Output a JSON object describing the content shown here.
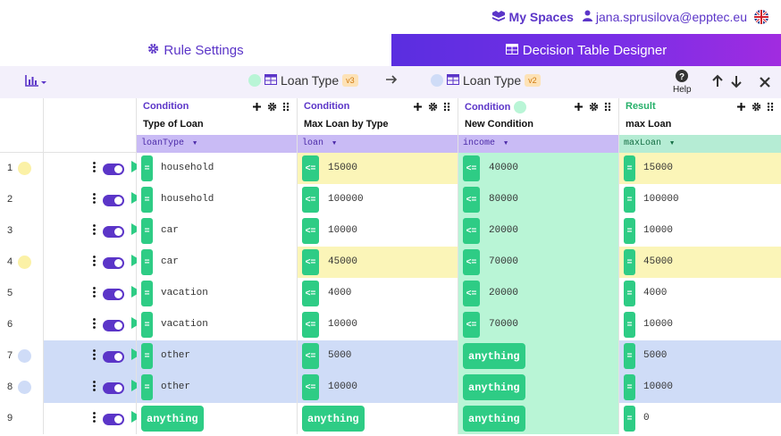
{
  "header": {
    "my_spaces": "My Spaces",
    "user_email": "jana.sprusilova@epptec.eu"
  },
  "tabs": [
    {
      "label": "Rule Settings"
    },
    {
      "label": "Decision Table Designer"
    }
  ],
  "toolbar": {
    "from_version": {
      "name": "Loan Type",
      "badge": "v3",
      "dot_color": "#b9f5d6"
    },
    "to_version": {
      "name": "Loan Type",
      "badge": "v2",
      "dot_color": "#cfdcf7"
    },
    "help_label": "Help"
  },
  "columns": [
    {
      "type": "Condition",
      "name": "Type of Loan",
      "variable": "loanType"
    },
    {
      "type": "Condition",
      "name": "Max Loan by Type",
      "variable": "loan"
    },
    {
      "type": "Condition",
      "name": "New Condition",
      "variable": "income"
    },
    {
      "type": "Result",
      "name": "max Loan",
      "variable": "maxLoan"
    }
  ],
  "colors": {
    "accent": "#5b35c8",
    "green": "#2ecc85",
    "yellow_highlight": "#fbf5b8",
    "blue_highlight": "#cfdcf7",
    "new_column": "#b9f5d6"
  },
  "rows": [
    {
      "num": "1",
      "dot": "yellow",
      "type": "household",
      "loan_op": "<=",
      "loan": "15000",
      "income_op": "<=",
      "income": "40000",
      "max": "15000"
    },
    {
      "num": "2",
      "dot": "",
      "type": "household",
      "loan_op": "<=",
      "loan": "100000",
      "income_op": "<=",
      "income": "80000",
      "max": "100000"
    },
    {
      "num": "3",
      "dot": "",
      "type": "car",
      "loan_op": "<=",
      "loan": "10000",
      "income_op": "<=",
      "income": "20000",
      "max": "10000"
    },
    {
      "num": "4",
      "dot": "yellow",
      "type": "car",
      "loan_op": "<=",
      "loan": "45000",
      "income_op": "<=",
      "income": "70000",
      "max": "45000"
    },
    {
      "num": "5",
      "dot": "",
      "type": "vacation",
      "loan_op": "<=",
      "loan": "4000",
      "income_op": "<=",
      "income": "20000",
      "max": "4000"
    },
    {
      "num": "6",
      "dot": "",
      "type": "vacation",
      "loan_op": "<=",
      "loan": "10000",
      "income_op": "<=",
      "income": "70000",
      "max": "10000"
    },
    {
      "num": "7",
      "dot": "blue",
      "type": "other",
      "loan_op": "<=",
      "loan": "5000",
      "income_op": "",
      "income": "anything",
      "max": "5000"
    },
    {
      "num": "8",
      "dot": "blue",
      "type": "other",
      "loan_op": "<=",
      "loan": "10000",
      "income_op": "",
      "income": "anything",
      "max": "10000"
    },
    {
      "num": "9",
      "dot": "",
      "type": "anything",
      "loan_op": "",
      "loan": "anything",
      "income_op": "",
      "income": "anything",
      "max": "0"
    }
  ]
}
